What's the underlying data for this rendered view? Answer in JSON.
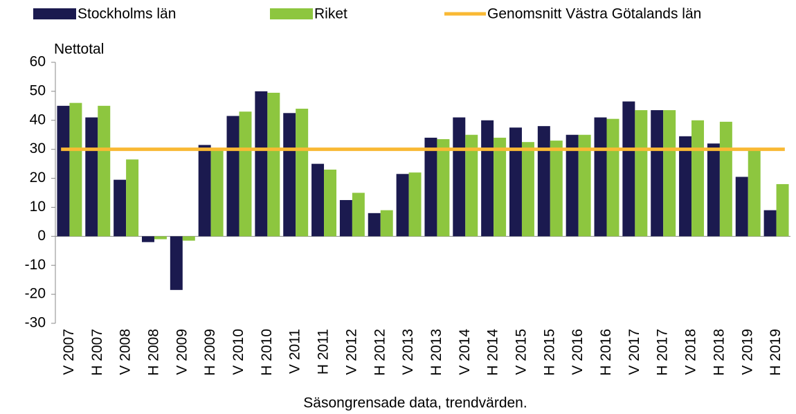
{
  "chart_data": {
    "type": "bar",
    "y_label": "Nettotal",
    "x_label": "Säsongrensade data, trendvärden.",
    "categories": [
      "V 2007",
      "H 2007",
      "V 2008",
      "H 2008",
      "V 2009",
      "H 2009",
      "V 2010",
      "H 2010",
      "V 2011",
      "H 2011",
      "V 2012",
      "H 2012",
      "V 2013",
      "H 2013",
      "V 2014",
      "H 2014",
      "V 2015",
      "H 2015",
      "V 2016",
      "H 2016",
      "V 2017",
      "H 2017",
      "V 2018",
      "H 2018",
      "V 2019",
      "H 2019"
    ],
    "series": [
      {
        "name": "Stockholms län",
        "color": "#1b1a4f",
        "type": "bar",
        "values": [
          45,
          41,
          19.5,
          -2,
          -18.5,
          31.5,
          41.5,
          50,
          42.5,
          25,
          12.5,
          8,
          21.5,
          34,
          41,
          40,
          37.5,
          38,
          35,
          41,
          46.5,
          43.5,
          34.5,
          32,
          20.5,
          9
        ]
      },
      {
        "name": "Riket",
        "color": "#8dc63f",
        "type": "bar",
        "values": [
          46,
          45,
          26.5,
          -1,
          -1.5,
          30,
          43,
          49.5,
          44,
          23,
          15,
          9,
          22,
          33.5,
          35,
          34,
          32.5,
          33,
          35,
          40.5,
          43.5,
          43.5,
          40,
          39.5,
          30,
          18
        ]
      },
      {
        "name": "Genomsnitt Västra Götalands län",
        "color": "#f9b934",
        "type": "line",
        "values": [
          30,
          30,
          30,
          30,
          30,
          30,
          30,
          30,
          30,
          30,
          30,
          30,
          30,
          30,
          30,
          30,
          30,
          30,
          30,
          30,
          30,
          30,
          30,
          30,
          30,
          30
        ]
      }
    ],
    "ylim": [
      -30,
      60
    ],
    "yticks": [
      -30,
      -20,
      -10,
      0,
      10,
      20,
      30,
      40,
      50,
      60
    ]
  }
}
